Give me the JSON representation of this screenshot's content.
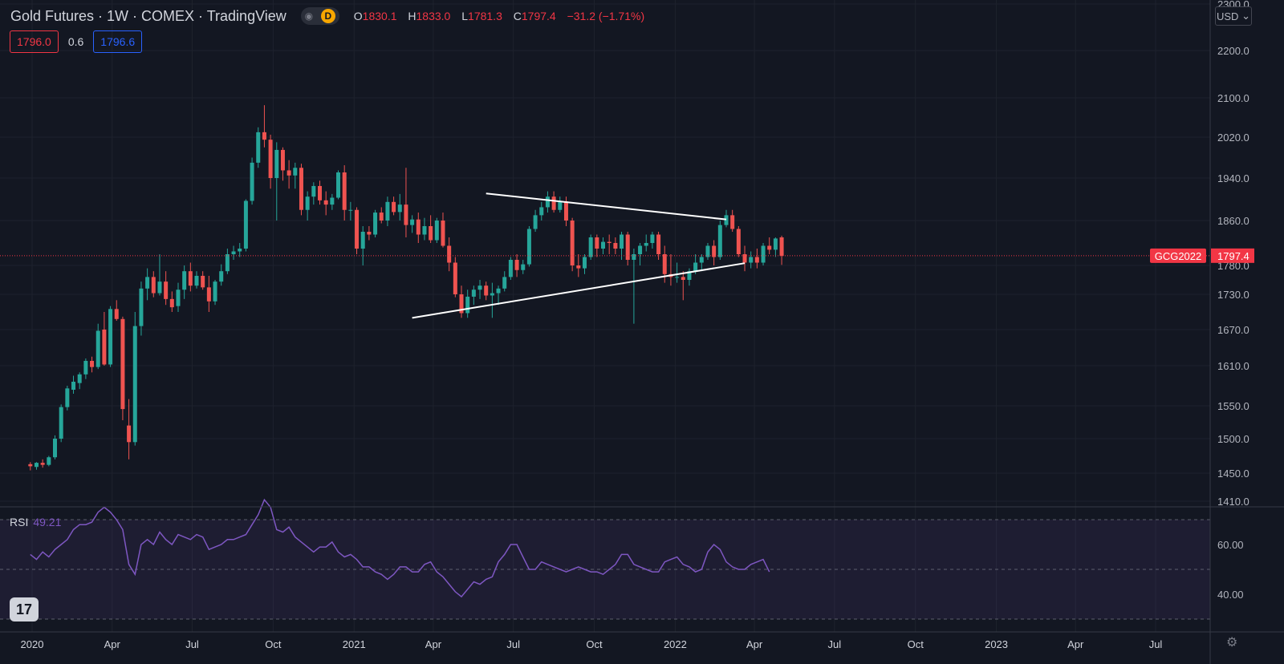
{
  "header": {
    "symbol": "Gold Futures · 1W · COMEX · TradingView",
    "eye_icon": "eye-icon",
    "interval_badge": "D",
    "ohlc": {
      "o_label": "O",
      "o": "1830.1",
      "h_label": "H",
      "h": "1833.0",
      "l_label": "L",
      "l": "1781.3",
      "c_label": "C",
      "c": "1797.4",
      "change": "−31.2 (−1.71%)"
    }
  },
  "quote_boxes": {
    "bid": "1796.0",
    "spread": "0.6",
    "ask": "1796.6"
  },
  "currency": "USD",
  "rsi": {
    "label": "RSI",
    "value": "49.21"
  },
  "colors": {
    "background": "#131722",
    "up": "#26a69a",
    "down": "#ef5350",
    "rsi_line": "#7e57c2",
    "trendline": "#ffffff",
    "last_price": "#f23645"
  },
  "chart_data": {
    "type": "candlestick",
    "symbol_tag": "GCG2022",
    "last_price": 1797.4,
    "last_price_label": "1797.4",
    "y_ticks": [
      "2300.0",
      "2200.0",
      "2100.0",
      "2020.0",
      "1940.0",
      "1860.0",
      "1780.0",
      "1730.0",
      "1670.0",
      "1610.0",
      "1550.0",
      "1500.0",
      "1450.0",
      "1410.0"
    ],
    "x_ticks": [
      "2020",
      "Apr",
      "Jul",
      "Oct",
      "2021",
      "Apr",
      "Jul",
      "Oct",
      "2022",
      "Apr",
      "Jul",
      "Oct",
      "2023",
      "Apr",
      "Jul"
    ],
    "candles": [
      [
        1463,
        1466,
        1454,
        1460
      ],
      [
        1459,
        1466,
        1455,
        1465
      ],
      [
        1465,
        1470,
        1458,
        1462
      ],
      [
        1462,
        1475,
        1460,
        1473
      ],
      [
        1473,
        1505,
        1470,
        1500
      ],
      [
        1500,
        1552,
        1495,
        1548
      ],
      [
        1548,
        1580,
        1543,
        1576
      ],
      [
        1574,
        1595,
        1568,
        1586
      ],
      [
        1584,
        1600,
        1575,
        1597
      ],
      [
        1597,
        1622,
        1590,
        1618
      ],
      [
        1618,
        1625,
        1600,
        1608
      ],
      [
        1608,
        1680,
        1605,
        1668
      ],
      [
        1670,
        1700,
        1610,
        1612
      ],
      [
        1612,
        1710,
        1608,
        1705
      ],
      [
        1705,
        1720,
        1685,
        1688
      ],
      [
        1688,
        1692,
        1528,
        1545
      ],
      [
        1520,
        1560,
        1470,
        1495
      ],
      [
        1495,
        1700,
        1490,
        1676
      ],
      [
        1676,
        1752,
        1660,
        1740
      ],
      [
        1740,
        1775,
        1720,
        1760
      ],
      [
        1760,
        1770,
        1725,
        1732
      ],
      [
        1732,
        1800,
        1728,
        1752
      ],
      [
        1752,
        1770,
        1712,
        1722
      ],
      [
        1722,
        1735,
        1700,
        1708
      ],
      [
        1710,
        1750,
        1700,
        1738
      ],
      [
        1738,
        1780,
        1722,
        1770
      ],
      [
        1770,
        1785,
        1735,
        1745
      ],
      [
        1745,
        1770,
        1740,
        1762
      ],
      [
        1762,
        1770,
        1738,
        1742
      ],
      [
        1742,
        1762,
        1700,
        1718
      ],
      [
        1718,
        1755,
        1712,
        1752
      ],
      [
        1752,
        1782,
        1745,
        1770
      ],
      [
        1770,
        1810,
        1765,
        1800
      ],
      [
        1800,
        1815,
        1790,
        1805
      ],
      [
        1805,
        1820,
        1795,
        1810
      ],
      [
        1810,
        1900,
        1805,
        1897
      ],
      [
        1897,
        1980,
        1890,
        1970
      ],
      [
        1970,
        2040,
        1960,
        2030
      ],
      [
        2030,
        2085,
        2000,
        2015
      ],
      [
        2015,
        2025,
        1920,
        1940
      ],
      [
        1940,
        2010,
        1860,
        1995
      ],
      [
        1995,
        2000,
        1935,
        1955
      ],
      [
        1955,
        1975,
        1920,
        1945
      ],
      [
        1945,
        1970,
        1920,
        1960
      ],
      [
        1960,
        1968,
        1870,
        1880
      ],
      [
        1880,
        1915,
        1860,
        1905
      ],
      [
        1905,
        1932,
        1890,
        1925
      ],
      [
        1925,
        1935,
        1890,
        1898
      ],
      [
        1898,
        1915,
        1870,
        1890
      ],
      [
        1890,
        1910,
        1880,
        1903
      ],
      [
        1903,
        1955,
        1900,
        1951
      ],
      [
        1951,
        1965,
        1860,
        1880
      ],
      [
        1880,
        1895,
        1860,
        1880
      ],
      [
        1880,
        1885,
        1800,
        1810
      ],
      [
        1810,
        1850,
        1780,
        1840
      ],
      [
        1840,
        1850,
        1825,
        1835
      ],
      [
        1835,
        1880,
        1830,
        1875
      ],
      [
        1875,
        1885,
        1855,
        1860
      ],
      [
        1860,
        1905,
        1850,
        1895
      ],
      [
        1895,
        1905,
        1870,
        1876
      ],
      [
        1876,
        1910,
        1860,
        1890
      ],
      [
        1890,
        1960,
        1830,
        1852
      ],
      [
        1852,
        1870,
        1838,
        1862
      ],
      [
        1862,
        1875,
        1820,
        1835
      ],
      [
        1835,
        1865,
        1825,
        1850
      ],
      [
        1850,
        1870,
        1820,
        1825
      ],
      [
        1825,
        1865,
        1820,
        1860
      ],
      [
        1860,
        1875,
        1812,
        1815
      ],
      [
        1815,
        1830,
        1770,
        1785
      ],
      [
        1785,
        1795,
        1725,
        1730
      ],
      [
        1730,
        1745,
        1690,
        1698
      ],
      [
        1698,
        1738,
        1690,
        1726
      ],
      [
        1726,
        1745,
        1712,
        1738
      ],
      [
        1738,
        1755,
        1722,
        1745
      ],
      [
        1745,
        1752,
        1720,
        1728
      ],
      [
        1728,
        1750,
        1690,
        1732
      ],
      [
        1732,
        1745,
        1712,
        1740
      ],
      [
        1740,
        1770,
        1735,
        1760
      ],
      [
        1760,
        1795,
        1755,
        1790
      ],
      [
        1790,
        1800,
        1760,
        1772
      ],
      [
        1772,
        1790,
        1765,
        1782
      ],
      [
        1782,
        1850,
        1778,
        1845
      ],
      [
        1845,
        1880,
        1840,
        1870
      ],
      [
        1870,
        1895,
        1860,
        1885
      ],
      [
        1885,
        1915,
        1875,
        1905
      ],
      [
        1905,
        1915,
        1875,
        1880
      ],
      [
        1880,
        1905,
        1875,
        1896
      ],
      [
        1896,
        1905,
        1850,
        1860
      ],
      [
        1860,
        1865,
        1770,
        1780
      ],
      [
        1780,
        1800,
        1760,
        1775
      ],
      [
        1775,
        1800,
        1765,
        1795
      ],
      [
        1795,
        1835,
        1790,
        1830
      ],
      [
        1830,
        1835,
        1795,
        1810
      ],
      [
        1810,
        1830,
        1800,
        1822
      ],
      [
        1822,
        1835,
        1800,
        1820
      ],
      [
        1820,
        1830,
        1800,
        1810
      ],
      [
        1810,
        1840,
        1790,
        1835
      ],
      [
        1835,
        1840,
        1780,
        1790
      ],
      [
        1790,
        1810,
        1680,
        1800
      ],
      [
        1800,
        1820,
        1780,
        1815
      ],
      [
        1815,
        1835,
        1805,
        1820
      ],
      [
        1820,
        1840,
        1810,
        1835
      ],
      [
        1835,
        1840,
        1790,
        1800
      ],
      [
        1800,
        1815,
        1750,
        1765
      ],
      [
        1765,
        1800,
        1745,
        1760
      ],
      [
        1760,
        1785,
        1750,
        1760
      ],
      [
        1760,
        1770,
        1720,
        1755
      ],
      [
        1755,
        1775,
        1745,
        1770
      ],
      [
        1770,
        1800,
        1765,
        1785
      ],
      [
        1785,
        1800,
        1770,
        1795
      ],
      [
        1795,
        1820,
        1790,
        1815
      ],
      [
        1815,
        1825,
        1780,
        1795
      ],
      [
        1795,
        1860,
        1790,
        1852
      ],
      [
        1852,
        1880,
        1848,
        1870
      ],
      [
        1870,
        1880,
        1840,
        1845
      ],
      [
        1845,
        1850,
        1795,
        1800
      ],
      [
        1800,
        1815,
        1770,
        1785
      ],
      [
        1785,
        1805,
        1775,
        1795
      ],
      [
        1795,
        1810,
        1775,
        1785
      ],
      [
        1785,
        1820,
        1780,
        1815
      ],
      [
        1815,
        1830,
        1800,
        1808
      ],
      [
        1808,
        1830,
        1795,
        1828
      ],
      [
        1830,
        1833,
        1781,
        1797
      ]
    ],
    "trendlines": [
      {
        "from": [
          "2021-05-31",
          1911
        ],
        "to": [
          "2022-02-28",
          1862
        ]
      },
      {
        "from": [
          "2021-03-08",
          1690
        ],
        "to": [
          "2022-03-21",
          1784
        ]
      }
    ],
    "rsi_panel": {
      "levels": [
        70,
        30
      ],
      "y_ticks": [
        "60.00",
        "40.00"
      ],
      "values": [
        56,
        54,
        57,
        55,
        58,
        60,
        62,
        66,
        68,
        68,
        69,
        73,
        75,
        73,
        70,
        66,
        52,
        48,
        60,
        62,
        60,
        65,
        62,
        60,
        64,
        63,
        62,
        64,
        63,
        58,
        59,
        60,
        62,
        62,
        63,
        64,
        68,
        72,
        78,
        75,
        66,
        65,
        67,
        63,
        61,
        59,
        57,
        59,
        59,
        61,
        57,
        55,
        56,
        54,
        51,
        51,
        49,
        48,
        46,
        48,
        51,
        51,
        49,
        49,
        52,
        53,
        49,
        47,
        44,
        41,
        39,
        42,
        45,
        44,
        46,
        47,
        53,
        56,
        60,
        60,
        55,
        50,
        50,
        53,
        52,
        51,
        50,
        49,
        50,
        51,
        50,
        49,
        49,
        48,
        50,
        52,
        56,
        56,
        52,
        51,
        50,
        49,
        49,
        53,
        54,
        55,
        52,
        51,
        49,
        50,
        57,
        60,
        58,
        53,
        51,
        50,
        50,
        52,
        53,
        54,
        49
      ]
    }
  }
}
